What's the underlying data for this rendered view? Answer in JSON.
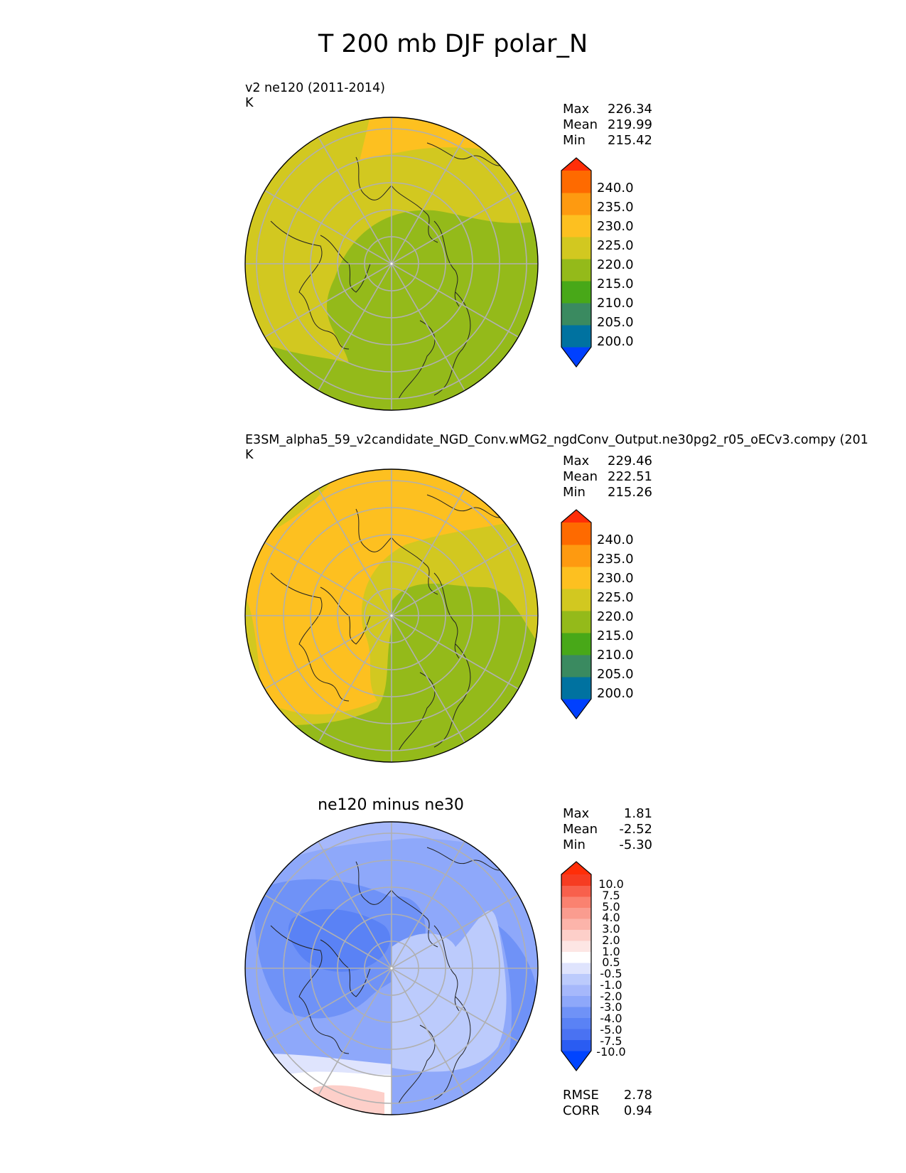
{
  "figure_title": "T 200 mb DJF polar_N",
  "panels": [
    {
      "title": "v2 ne120 (2011-2014)",
      "units": "K",
      "stats": {
        "max_label": "Max",
        "max": "226.34",
        "mean_label": "Mean",
        "mean": "219.99",
        "min_label": "Min",
        "min": "215.42"
      },
      "colorbar_ticks": [
        "240.0",
        "235.0",
        "230.0",
        "225.0",
        "220.0",
        "215.0",
        "210.0",
        "205.0",
        "200.0"
      ]
    },
    {
      "title": "E3SM_alpha5_59_v2candidate_NGD_Conv.wMG2_ngdConv_Output.ne30pg2_r05_oECv3.compy (201",
      "units": "K",
      "stats": {
        "max_label": "Max",
        "max": "229.46",
        "mean_label": "Mean",
        "mean": "222.51",
        "min_label": "Min",
        "min": "215.26"
      },
      "colorbar_ticks": [
        "240.0",
        "235.0",
        "230.0",
        "225.0",
        "220.0",
        "215.0",
        "210.0",
        "205.0",
        "200.0"
      ]
    },
    {
      "title": "ne120 minus ne30",
      "stats": {
        "max_label": "Max",
        "max": "1.81",
        "mean_label": "Mean",
        "mean": "-2.52",
        "min_label": "Min",
        "min": "-5.30"
      },
      "colorbar_ticks": [
        "10.0",
        "7.5",
        "5.0",
        "4.0",
        "3.0",
        "2.0",
        "1.0",
        "0.5",
        "-0.5",
        "-1.0",
        "-2.0",
        "-3.0",
        "-4.0",
        "-5.0",
        "-7.5",
        "-10.0"
      ],
      "metrics": {
        "rmse_label": "RMSE",
        "rmse": "2.78",
        "corr_label": "CORR",
        "corr": "0.94"
      }
    }
  ],
  "colors": {
    "abs_levels": [
      "#0040ff",
      "#0072a0",
      "#3a8a60",
      "#48a818",
      "#94ba1a",
      "#d2c820",
      "#fdc020",
      "#fe9a10",
      "#fe6a00",
      "#ff2e08"
    ],
    "diff_levels": [
      "#0044ff",
      "#2a5cf2",
      "#4a72f2",
      "#5a82f5",
      "#6f92f7",
      "#8ea8fa",
      "#a6b8fb",
      "#bccbfc",
      "#dfe4fd",
      "#ffffff",
      "#fde6e4",
      "#fdcfc9",
      "#fcb4aa",
      "#fa9c8f",
      "#fa8270",
      "#f8604c",
      "#f63c22",
      "#ff2e08"
    ]
  }
}
